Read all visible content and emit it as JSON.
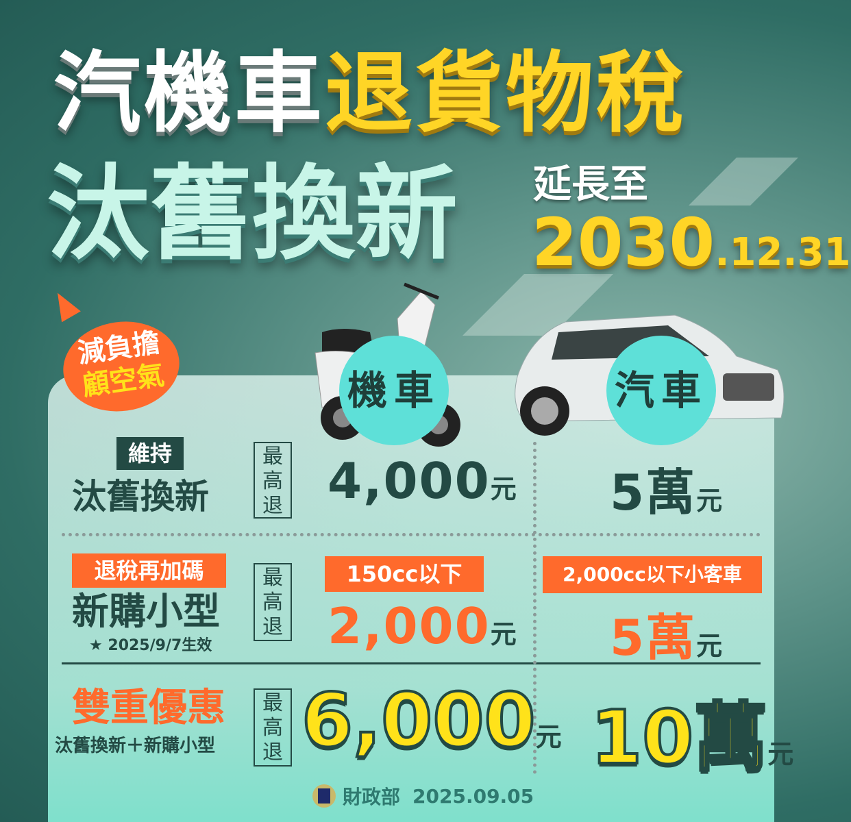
{
  "title": {
    "line1_white": "汽機車",
    "line1_yellow": "退貨物稅",
    "line2": "汰舊換新",
    "extend_label": "延長至",
    "year": "2030",
    "date_suffix": ".12.31"
  },
  "badge": {
    "line1": "減負擔",
    "line2": "顧空氣"
  },
  "columns": {
    "scooter": "機車",
    "car": "汽車"
  },
  "max_refund_label": [
    "最",
    "高",
    "退"
  ],
  "rows": [
    {
      "tag": "維持",
      "title": "汰舊換新",
      "scooter_value": "4,000",
      "scooter_unit": "元",
      "car_value": "5萬",
      "car_unit": "元"
    },
    {
      "tag": "退稅再加碼",
      "title": "新購小型",
      "note": "★ 2025/9/7生效",
      "scooter_condition": "150cc以下",
      "scooter_value": "2,000",
      "scooter_unit": "元",
      "car_condition": "2,000cc以下小客車",
      "car_value": "5萬",
      "car_unit": "元"
    },
    {
      "title": "雙重優惠",
      "subtitle": "汰舊換新＋新購小型",
      "scooter_value": "6,000",
      "scooter_unit": "元",
      "car_value": "10萬",
      "car_unit": "元"
    }
  ],
  "footer": {
    "org": "財政部",
    "date": "2025.09.05"
  },
  "colors": {
    "accent_orange": "#ff6a2c",
    "accent_yellow": "#ffd526",
    "dark_text": "#234a44",
    "circle": "#5ee0d8"
  }
}
